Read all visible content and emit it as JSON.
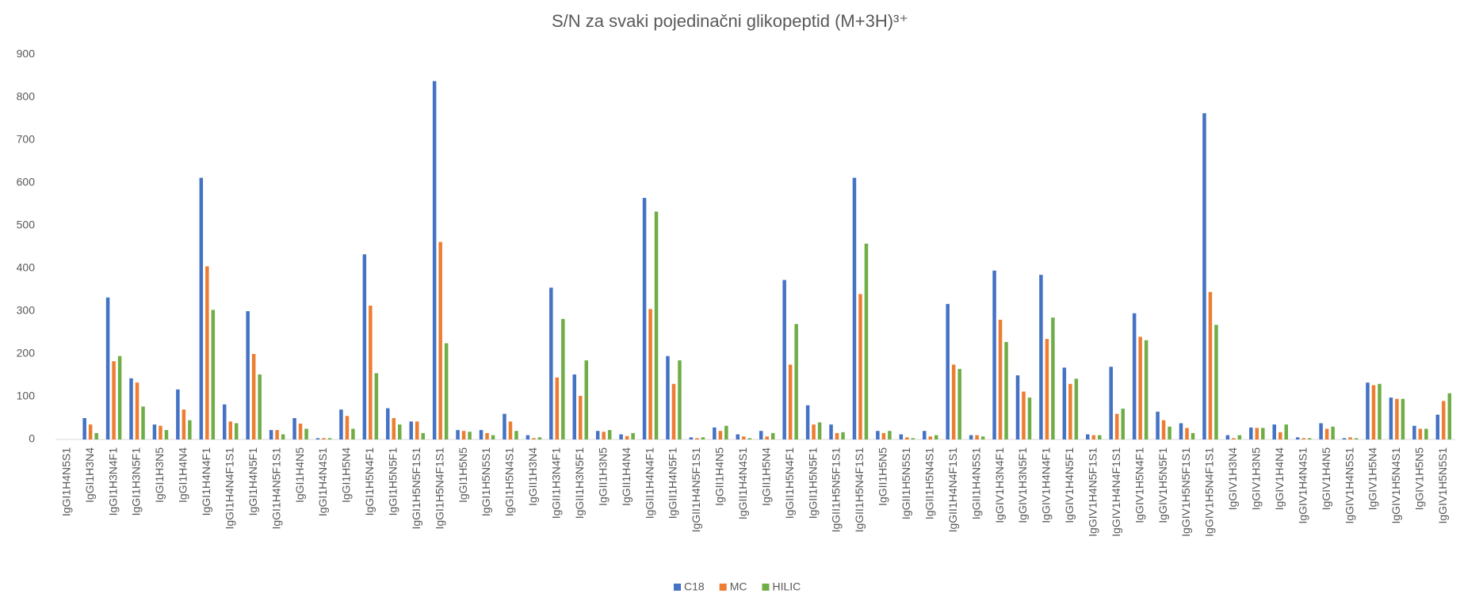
{
  "chart_data": {
    "type": "bar",
    "title": "S/N za svaki pojedinačni glikopeptid (M+3H)³⁺",
    "categories": [
      "IgGI1H4N5S1",
      "IgGI1H3N4",
      "IgGI1H3N4F1",
      "IgGI1H3N5F1",
      "IgGI1H3N5",
      "IgGI1H4N4",
      "IgGI1H4N4F1",
      "IgGI1H4N4F1S1",
      "IgGI1H4N5F1",
      "IgGI1H4N5F1S1",
      "IgGI1H4N5",
      "IgGI1H4N4S1",
      "IgGI1H5N4",
      "IgGI1H5N4F1",
      "IgGI1H5N5F1",
      "IgGI1H5N5F1S1",
      "IgGI1H5N4F1S1",
      "IgGI1H5N5",
      "IgGI1H5N5S1",
      "IgGI1H5N4S1",
      "IgGII1H3N4",
      "IgGII1H3N4F1",
      "IgGII1H3N5F1",
      "IgGII1H3N5",
      "IgGII1H4N4",
      "IgGII1H4N4F1",
      "IgGII1H4N5F1",
      "IgGII1H4N5F1S1",
      "IgGII1H4N5",
      "IgGII1H4N4S1",
      "IgGII1H5N4",
      "IgGII1H5N4F1",
      "IgGII1H5N5F1",
      "IgGII1H5N5F1S1",
      "IgGII1H5N4F1S1",
      "IgGII1H5N5",
      "IgGII1H5N5S1",
      "IgGII1H5N4S1",
      "IgGII1H4N4F1S1",
      "IgGII1H4N5S1",
      "IgGIV1H3N4F1",
      "IgGIV1H3N5F1",
      "IgGIV1H4N4F1",
      "IgGIV1H4N5F1",
      "IgGIV1H4N5F1S1",
      "IgGIV1H4N4F1S1",
      "IgGIV1H5N4F1",
      "IgGIV1H5N5F1",
      "IgGIV1H5N5F1S1",
      "IgGIV1H5N4F1S1",
      "IgGIV1H3N4",
      "IgGIV1H3N5",
      "IgGIV1H4N4",
      "IgGIV1H4N4S1",
      "IgGIV1H4N5",
      "IgGIV1H4N5S1",
      "IgGIV1H5N4",
      "IgGIV1H5N4S1",
      "IgGIV1H5N5",
      "IgGIV1H5N5S1"
    ],
    "series": [
      {
        "name": "C18",
        "color": "#4472c4",
        "values": [
          0,
          50,
          332,
          143,
          35,
          117,
          612,
          82,
          300,
          22,
          50,
          3,
          70,
          433,
          73,
          42,
          838,
          22,
          22,
          60,
          10,
          355,
          152,
          20,
          12,
          565,
          195,
          5,
          28,
          12,
          20,
          373,
          80,
          35,
          612,
          20,
          12,
          20,
          317,
          10,
          395,
          150,
          385,
          168,
          12,
          170,
          295,
          65,
          38,
          763,
          10,
          28,
          35,
          5,
          38,
          3,
          133,
          98,
          32,
          58
        ]
      },
      {
        "name": "MC",
        "color": "#ed7d31",
        "values": [
          0,
          35,
          183,
          133,
          32,
          70,
          405,
          42,
          200,
          22,
          37,
          3,
          55,
          313,
          50,
          42,
          462,
          20,
          15,
          42,
          3,
          145,
          102,
          18,
          8,
          305,
          130,
          3,
          20,
          7,
          7,
          175,
          35,
          15,
          340,
          15,
          5,
          7,
          175,
          10,
          280,
          112,
          235,
          130,
          10,
          60,
          240,
          45,
          27,
          345,
          3,
          27,
          17,
          3,
          25,
          5,
          127,
          95,
          25,
          90
        ]
      },
      {
        "name": "HILIC",
        "color": "#70ad47",
        "values": [
          0,
          15,
          195,
          77,
          22,
          45,
          303,
          38,
          152,
          12,
          25,
          3,
          25,
          155,
          35,
          15,
          225,
          18,
          10,
          20,
          5,
          282,
          185,
          22,
          15,
          533,
          185,
          5,
          32,
          3,
          15,
          270,
          40,
          17,
          458,
          20,
          3,
          10,
          165,
          7,
          228,
          98,
          285,
          142,
          10,
          72,
          232,
          30,
          15,
          268,
          10,
          27,
          35,
          3,
          30,
          3,
          130,
          95,
          25,
          108
        ]
      }
    ],
    "ylim": [
      0,
      900
    ],
    "yticks": [
      0,
      100,
      200,
      300,
      400,
      500,
      600,
      700,
      800,
      900
    ],
    "grid": false
  }
}
